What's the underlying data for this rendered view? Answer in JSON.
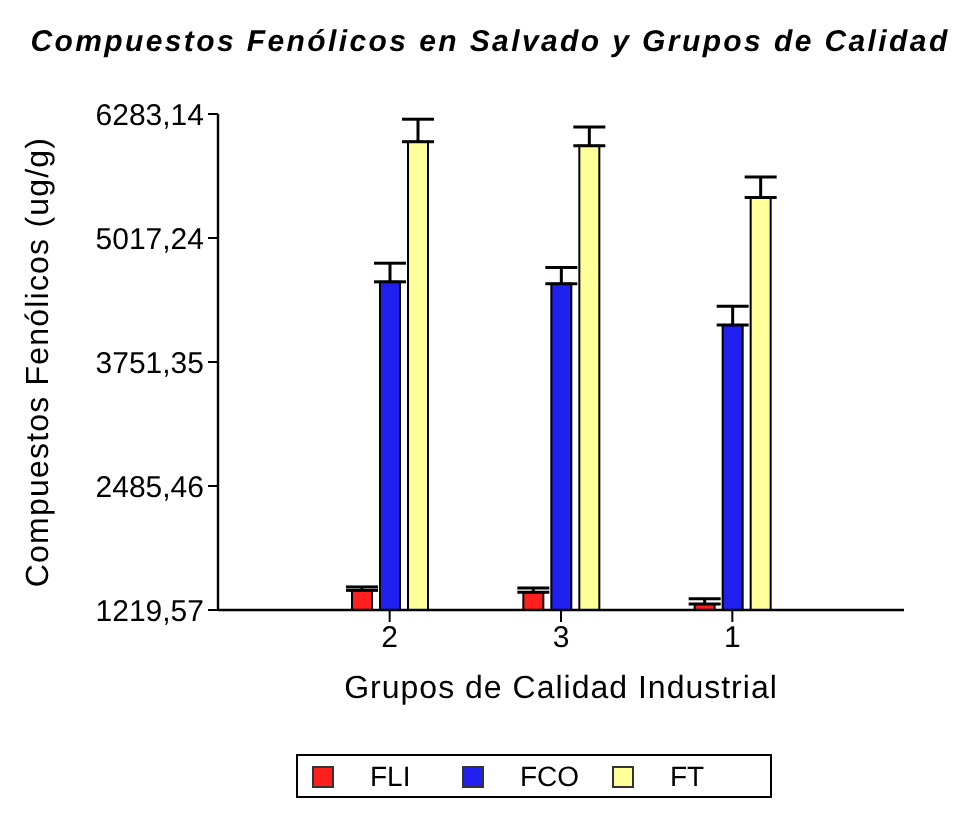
{
  "chart_data": {
    "type": "bar",
    "title": "Compuestos Fenólicos en Salvado y Grupos de Calidad",
    "xlabel": "Grupos de Calidad Industrial",
    "ylabel": "Compuestos Fenólicos (ug/g)",
    "categories": [
      "2",
      "3",
      "1"
    ],
    "series": [
      {
        "name": "FLI",
        "color": "#ff1f1f",
        "values": [
          1420,
          1400,
          1280
        ],
        "errors": [
          35,
          45,
          55
        ]
      },
      {
        "name": "FCO",
        "color": "#2020f0",
        "values": [
          4570,
          4550,
          4130
        ],
        "errors": [
          190,
          165,
          190
        ]
      },
      {
        "name": "FT",
        "color": "#ffff99",
        "values": [
          6000,
          5960,
          5430
        ],
        "errors": [
          230,
          190,
          210
        ]
      }
    ],
    "ylim": [
      1219.57,
      6283.14
    ],
    "yticks": [
      {
        "value": 1219.57,
        "label": "1219,57"
      },
      {
        "value": 2485.46,
        "label": "2485,46"
      },
      {
        "value": 3751.35,
        "label": "3751,35"
      },
      {
        "value": 5017.24,
        "label": "5017,24"
      },
      {
        "value": 6283.14,
        "label": "6283,14"
      }
    ],
    "legend": "bottom"
  }
}
